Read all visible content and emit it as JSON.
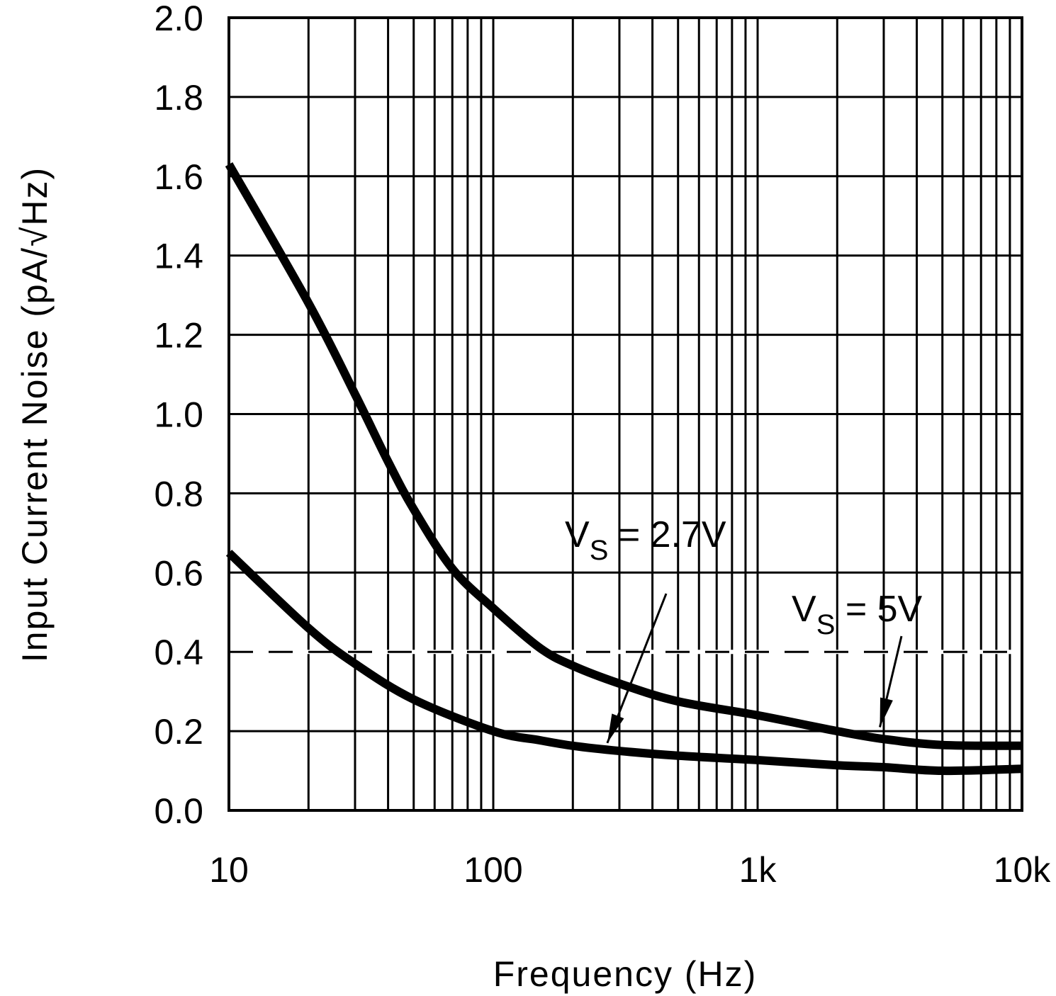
{
  "chart_data": {
    "type": "line",
    "title": "",
    "xlabel": "Frequency (Hz)",
    "ylabel": "Input Current Noise (pA/√Hz)",
    "xscale": "log",
    "xlim": [
      10,
      10000
    ],
    "ylim": [
      0.0,
      2.0
    ],
    "grid": true,
    "x_ticks": [
      {
        "value": 10,
        "label": "10"
      },
      {
        "value": 100,
        "label": "100"
      },
      {
        "value": 1000,
        "label": "1k"
      },
      {
        "value": 10000,
        "label": "10k"
      }
    ],
    "y_ticks": [
      {
        "value": 0.0,
        "label": "0.0"
      },
      {
        "value": 0.2,
        "label": "0.2"
      },
      {
        "value": 0.4,
        "label": "0.4"
      },
      {
        "value": 0.6,
        "label": "0.6"
      },
      {
        "value": 0.8,
        "label": "0.8"
      },
      {
        "value": 1.0,
        "label": "1.0"
      },
      {
        "value": 1.2,
        "label": "1.2"
      },
      {
        "value": 1.4,
        "label": "1.4"
      },
      {
        "value": 1.6,
        "label": "1.6"
      },
      {
        "value": 1.8,
        "label": "1.8"
      },
      {
        "value": 2.0,
        "label": "2.0"
      }
    ],
    "reference_line": {
      "y": 0.4,
      "style": "dashed"
    },
    "series": [
      {
        "name": "VS = 5V",
        "x": [
          10,
          20,
          30,
          40,
          50,
          70,
          100,
          150,
          200,
          300,
          500,
          1000,
          2000,
          3000,
          5000,
          10000
        ],
        "y": [
          1.63,
          1.28,
          1.05,
          0.88,
          0.76,
          0.61,
          0.51,
          0.41,
          0.365,
          0.32,
          0.275,
          0.24,
          0.2,
          0.18,
          0.165,
          0.163
        ]
      },
      {
        "name": "VS = 2.7V",
        "x": [
          10,
          20,
          30,
          50,
          100,
          150,
          200,
          300,
          500,
          1000,
          2000,
          3000,
          5000,
          10000
        ],
        "y": [
          0.65,
          0.46,
          0.37,
          0.28,
          0.2,
          0.177,
          0.163,
          0.15,
          0.138,
          0.127,
          0.114,
          0.109,
          0.1,
          0.105
        ]
      }
    ],
    "annotations": [
      {
        "main": "V",
        "sub": "S",
        "rest": " = 2.7V",
        "points_to": "VS = 2.7V",
        "arrow_at": {
          "x": 270,
          "y": 0.17
        }
      },
      {
        "main": "V",
        "sub": "S",
        "rest": " = 5V",
        "points_to": "VS = 5V",
        "arrow_at": {
          "x": 2900,
          "y": 0.21
        }
      }
    ]
  }
}
